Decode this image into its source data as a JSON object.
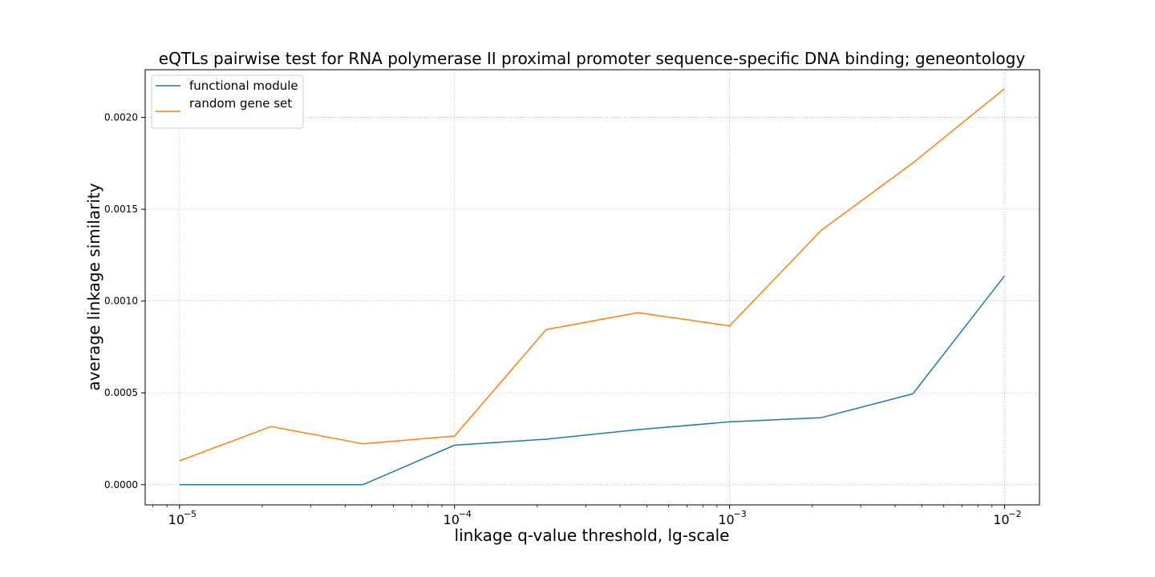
{
  "chart_data": {
    "type": "line",
    "title": "eQTLs pairwise test for RNA polymerase II proximal promoter sequence-specific DNA binding; geneontology",
    "xlabel": "linkage q-value threshold, lg-scale",
    "ylabel": "average linkage similarity",
    "xscale": "log",
    "xlim": [
      7.5e-06,
      0.0134
    ],
    "ylim": [
      -0.00011,
      0.00226
    ],
    "x_ticks": [
      {
        "base": "10",
        "exp": "−5",
        "value": 1e-05
      },
      {
        "base": "10",
        "exp": "−4",
        "value": 0.0001
      },
      {
        "base": "10",
        "exp": "−3",
        "value": 0.001
      },
      {
        "base": "10",
        "exp": "−2",
        "value": 0.01
      }
    ],
    "y_ticks": [
      {
        "label": "0.0000",
        "value": 0.0
      },
      {
        "label": "0.0005",
        "value": 0.0005
      },
      {
        "label": "0.0010",
        "value": 0.001
      },
      {
        "label": "0.0015",
        "value": 0.0015
      },
      {
        "label": "0.0020",
        "value": 0.002
      }
    ],
    "x": [
      1e-05,
      2.154e-05,
      4.642e-05,
      0.0001,
      0.0002154,
      0.0004642,
      0.001,
      0.002154,
      0.004642,
      0.01
    ],
    "series": [
      {
        "name": "functional module",
        "color": "#1f77b4",
        "values": [
          0.0,
          0.0,
          0.0,
          0.000215,
          0.000248,
          0.0003,
          0.000342,
          0.000365,
          0.000495,
          0.001137
        ]
      },
      {
        "name": "random gene set",
        "color": "#ff7f0e",
        "values": [
          0.00013,
          0.000317,
          0.000223,
          0.000265,
          0.000845,
          0.000937,
          0.000865,
          0.001385,
          0.001752,
          0.002157
        ]
      }
    ],
    "grid": true,
    "legend_position": "upper left"
  }
}
